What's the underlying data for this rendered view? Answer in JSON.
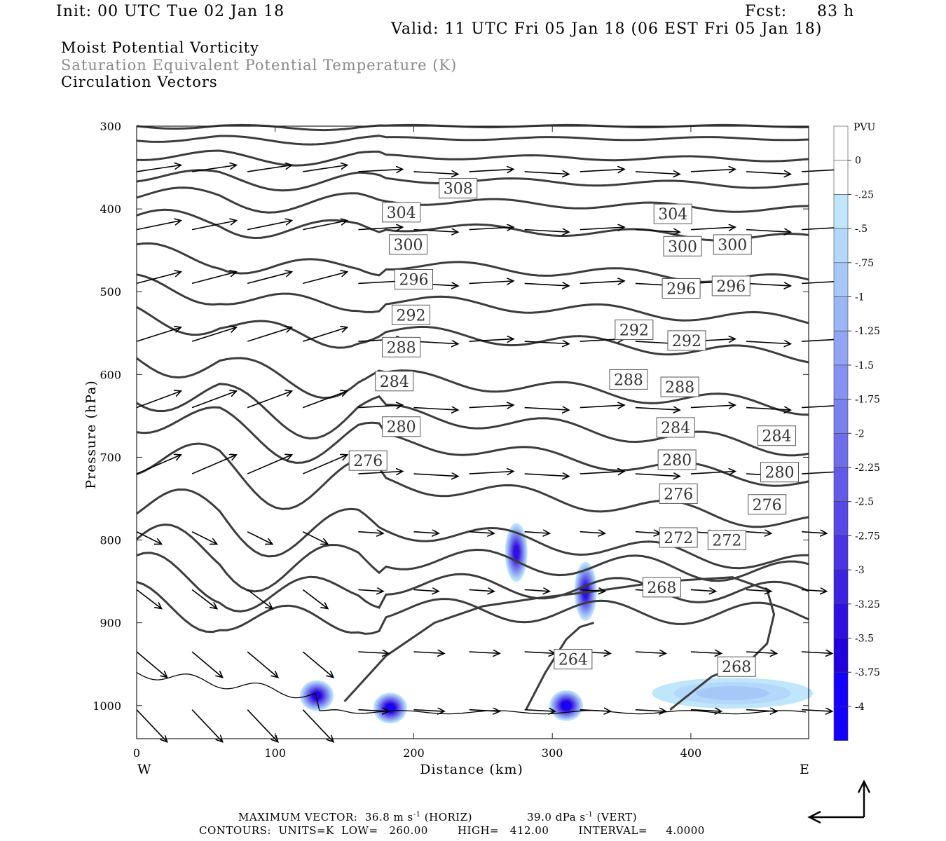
{
  "header": {
    "init": "Init: 00 UTC Tue 02 Jan 18",
    "fcst_label": "Fcst:",
    "fcst_value": "83 h",
    "valid": "Valid: 11 UTC Fri 05 Jan 18 (06 EST Fri 05 Jan 18)",
    "field1": "Moist Potential Vorticity",
    "field2": "Saturation Equivalent Potential Temperature (K)",
    "field3": "Circulation Vectors"
  },
  "colors": {
    "field2_text": "#8a8a8a",
    "contour": "#3c3c3c",
    "pv_levels": [
      "#ffffff",
      "#ffffff",
      "#bfe6fb",
      "#b4d8fb",
      "#a6c8f8",
      "#9bb6f5",
      "#90a5f3",
      "#8592f1",
      "#7a80ee",
      "#6e6eeb",
      "#625be9",
      "#5748e7",
      "#4a34e4",
      "#3d22e2",
      "#2f10e0",
      "#2200de",
      "#1400ff"
    ]
  },
  "footer": {
    "max_vector": "MAXIMUM VECTOR:  36.8 m s",
    "horiz": "(HORIZ)",
    "vert_val": "39.0 dPa s",
    "vert": "(VERT)",
    "contours": "CONTOURS:  UNITS=K  LOW=   260.00        HIGH=   412.00        INTERVAL=     4.0000",
    "exp": "-1"
  },
  "chart_data": {
    "type": "contour",
    "xlabel": "Distance (km)",
    "ylabel": "Pressure (hPa)",
    "xlim": [
      0,
      485
    ],
    "ylim": [
      1040,
      300
    ],
    "x_ticks": [
      0,
      100,
      200,
      300,
      400
    ],
    "y_ticks": [
      300,
      400,
      500,
      600,
      700,
      800,
      900,
      1000
    ],
    "x_start_label": "W",
    "x_end_label": "E",
    "colorbar": {
      "title": "PVU",
      "labels": [
        "0",
        "-.25",
        "-.5",
        "-.75",
        "-1",
        "-1.25",
        "-1.5",
        "-1.75",
        "-2",
        "-2.25",
        "-2.5",
        "-2.75",
        "-3",
        "-3.25",
        "-3.5",
        "-3.75",
        "-4"
      ]
    },
    "contour_labels": [
      {
        "text": "308",
        "x": 232,
        "p": 375
      },
      {
        "text": "304",
        "x": 191,
        "p": 404
      },
      {
        "text": "304",
        "x": 387,
        "p": 406
      },
      {
        "text": "300",
        "x": 196,
        "p": 443
      },
      {
        "text": "300",
        "x": 394,
        "p": 445
      },
      {
        "text": "300",
        "x": 430,
        "p": 443
      },
      {
        "text": "296",
        "x": 200,
        "p": 485
      },
      {
        "text": "296",
        "x": 393,
        "p": 496
      },
      {
        "text": "296",
        "x": 429,
        "p": 493
      },
      {
        "text": "292",
        "x": 198,
        "p": 528
      },
      {
        "text": "292",
        "x": 359,
        "p": 546
      },
      {
        "text": "292",
        "x": 397,
        "p": 559
      },
      {
        "text": "288",
        "x": 191,
        "p": 567
      },
      {
        "text": "288",
        "x": 355,
        "p": 606
      },
      {
        "text": "288",
        "x": 392,
        "p": 615
      },
      {
        "text": "284",
        "x": 186,
        "p": 608
      },
      {
        "text": "284",
        "x": 389,
        "p": 664
      },
      {
        "text": "284",
        "x": 462,
        "p": 674
      },
      {
        "text": "280",
        "x": 191,
        "p": 663
      },
      {
        "text": "280",
        "x": 390,
        "p": 703
      },
      {
        "text": "280",
        "x": 464,
        "p": 718
      },
      {
        "text": "276",
        "x": 167,
        "p": 704
      },
      {
        "text": "276",
        "x": 391,
        "p": 744
      },
      {
        "text": "276",
        "x": 455,
        "p": 757
      },
      {
        "text": "272",
        "x": 391,
        "p": 797
      },
      {
        "text": "272",
        "x": 426,
        "p": 800
      },
      {
        "text": "268",
        "x": 379,
        "p": 857
      },
      {
        "text": "268",
        "x": 433,
        "p": 953
      },
      {
        "text": "264",
        "x": 315,
        "p": 944
      }
    ],
    "pv_minima": [
      {
        "x": 274,
        "p": 815,
        "value": -3.25
      },
      {
        "x": 324,
        "p": 862,
        "value": -3.25
      },
      {
        "x": 130,
        "p": 988,
        "value": -3.5
      },
      {
        "x": 183,
        "p": 1003,
        "value": -3.75
      },
      {
        "x": 310,
        "p": 1000,
        "value": -4
      },
      {
        "x": 430,
        "p": 985,
        "value": -0.75
      }
    ]
  }
}
